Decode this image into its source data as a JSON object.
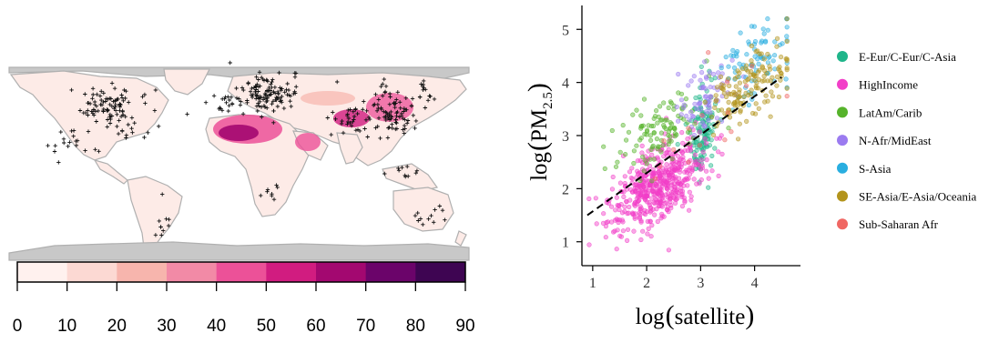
{
  "chart_data": [
    {
      "type": "heatmap",
      "colorbar": {
        "ticks": [
          "0",
          "10",
          "20",
          "30",
          "40",
          "50",
          "60",
          "70",
          "80",
          "90"
        ],
        "colors": [
          "#fff1ee",
          "#fcd9d3",
          "#f7b5ad",
          "#f28aa6",
          "#ec5198",
          "#d11c80",
          "#a30870",
          "#6b046a",
          "#3e0552"
        ]
      },
      "land_color": "#fdebe7",
      "border_color": "#b0b0b0",
      "antarctica_color": "#c8c8c8",
      "marker": "+"
    },
    {
      "type": "scatter",
      "xlabel_main": "log",
      "xlabel_inner": "satellite",
      "ylabel_main": "log",
      "ylabel_inner": "PM",
      "ylabel_sub": "2.5",
      "xticks": [
        "1",
        "2",
        "3",
        "4"
      ],
      "yticks": [
        "1",
        "2",
        "3",
        "4",
        "5"
      ],
      "xlim": [
        0.8,
        4.85
      ],
      "ylim": [
        0.55,
        5.45
      ],
      "trend": {
        "x": [
          0.9,
          4.5
        ],
        "y": [
          1.5,
          4.1
        ],
        "style": "dashed"
      },
      "series": [
        {
          "name": "E-Eur/C-Eur/C-Asia",
          "color": "#1fb58a",
          "n": 120,
          "cx": 3.05,
          "cy": 3.1,
          "sx": 0.12,
          "sy": 0.4
        },
        {
          "name": "HighIncome",
          "color": "#f23fc8",
          "n": 520,
          "cx": 2.2,
          "cy": 2.05,
          "sx": 0.45,
          "sy": 0.35
        },
        {
          "name": "LatAm/Carib",
          "color": "#56b32b",
          "n": 110,
          "cx": 2.2,
          "cy": 3.05,
          "sx": 0.45,
          "sy": 0.35
        },
        {
          "name": "N-Afr/MidEast",
          "color": "#9b7bf0",
          "n": 70,
          "cx": 3.1,
          "cy": 3.7,
          "sx": 0.3,
          "sy": 0.3
        },
        {
          "name": "S-Asia",
          "color": "#29aee0",
          "n": 80,
          "cx": 4.0,
          "cy": 4.35,
          "sx": 0.35,
          "sy": 0.4
        },
        {
          "name": "SE-Asia/E-Asia/Oceania",
          "color": "#b3941c",
          "n": 140,
          "cx": 3.95,
          "cy": 3.95,
          "sx": 0.35,
          "sy": 0.3
        },
        {
          "name": "Sub-Saharan Afr",
          "color": "#f06763",
          "n": 16,
          "cx": 3.2,
          "cy": 3.4,
          "sx": 0.7,
          "sy": 0.5
        }
      ]
    }
  ]
}
